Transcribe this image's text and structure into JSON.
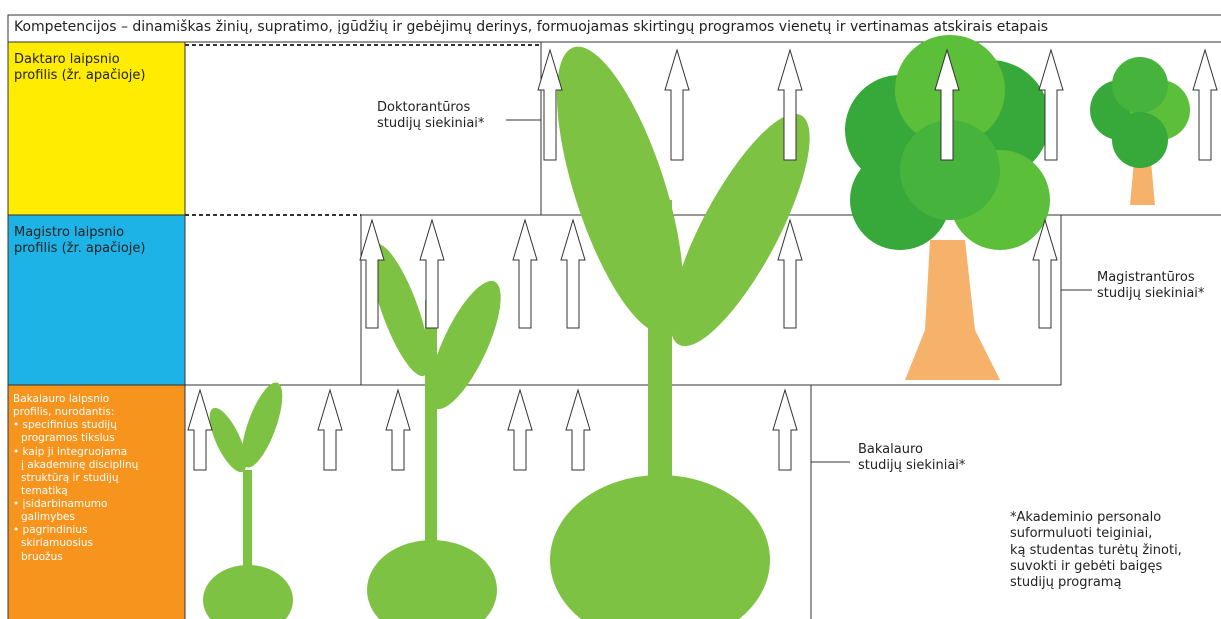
{
  "header": {
    "title": "Kompetencijos – dinamiškas žinių, supratimo, įgūdžių ir gebėjimų derinys, formuojamas skirtingų programos vienetų ir vertinamas atskirais etapais"
  },
  "levels": {
    "doctorate": {
      "profile": [
        "Daktaro laipsnio",
        "profilis (žr. apačioje)"
      ],
      "outcomes": [
        "Doktorantūros",
        "studijų siekiniai*"
      ]
    },
    "master": {
      "profile": [
        "Magistro laipsnio",
        "profilis (žr. apačioje)"
      ],
      "outcomes": [
        "Magistrantūros",
        "studijų siekiniai*"
      ]
    },
    "bachelor": {
      "profile": [
        "Bakalauro laipsnio",
        "profilis, nurodantis:"
      ],
      "bullets": [
        [
          "specifinius studijų",
          "programos tikslus"
        ],
        [
          "kaip ji integruojama",
          "į akademinę disciplinų",
          "struktūrą ir studijų",
          "tematiką"
        ],
        [
          "įsidarbinamumo",
          "galimybes"
        ],
        [
          "pagrindinius",
          "skiriamuosius",
          "bruožus"
        ]
      ],
      "outcomes": [
        "Bakalauro",
        "studijų siekiniai*"
      ]
    }
  },
  "note": [
    "*Akademinio personalo",
    "suformuluoti teiginiai,",
    "ką studentas turėtų žinoti,",
    "suvokti ir gebėti baigęs",
    "studijų programą"
  ]
}
